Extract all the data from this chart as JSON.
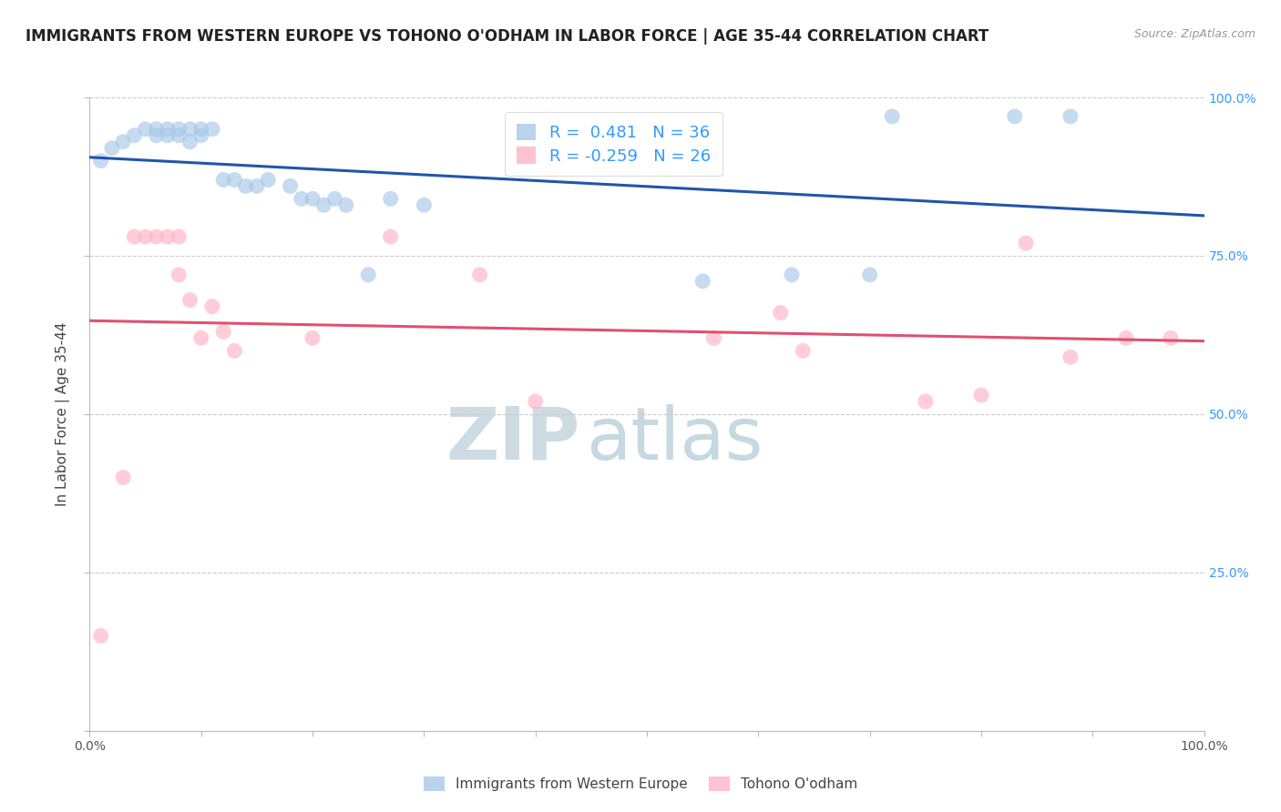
{
  "title": "IMMIGRANTS FROM WESTERN EUROPE VS TOHONO O'ODHAM IN LABOR FORCE | AGE 35-44 CORRELATION CHART",
  "source": "Source: ZipAtlas.com",
  "ylabel": "In Labor Force | Age 35-44",
  "xlim": [
    0.0,
    1.0
  ],
  "ylim": [
    0.0,
    1.0
  ],
  "blue_R": 0.481,
  "blue_N": 36,
  "pink_R": -0.259,
  "pink_N": 26,
  "blue_color": "#A8C8E8",
  "pink_color": "#FFB3C6",
  "blue_line_color": "#2255AA",
  "pink_line_color": "#E05070",
  "legend_color": "#3399FF",
  "watermark_zip_color": "#C8D8E8",
  "watermark_atlas_color": "#A8C4D8",
  "blue_points_x": [
    0.01,
    0.02,
    0.03,
    0.04,
    0.05,
    0.06,
    0.06,
    0.07,
    0.07,
    0.08,
    0.08,
    0.09,
    0.09,
    0.1,
    0.1,
    0.11,
    0.12,
    0.13,
    0.14,
    0.15,
    0.16,
    0.18,
    0.19,
    0.2,
    0.21,
    0.22,
    0.23,
    0.25,
    0.27,
    0.3,
    0.55,
    0.63,
    0.7,
    0.72,
    0.83,
    0.88
  ],
  "blue_points_y": [
    0.9,
    0.92,
    0.93,
    0.94,
    0.95,
    0.95,
    0.94,
    0.94,
    0.95,
    0.95,
    0.94,
    0.95,
    0.93,
    0.95,
    0.94,
    0.95,
    0.87,
    0.87,
    0.86,
    0.86,
    0.87,
    0.86,
    0.84,
    0.84,
    0.83,
    0.84,
    0.83,
    0.72,
    0.84,
    0.83,
    0.71,
    0.72,
    0.72,
    0.97,
    0.97,
    0.97
  ],
  "pink_points_x": [
    0.01,
    0.03,
    0.04,
    0.05,
    0.06,
    0.07,
    0.08,
    0.08,
    0.09,
    0.1,
    0.11,
    0.12,
    0.13,
    0.2,
    0.27,
    0.35,
    0.4,
    0.56,
    0.62,
    0.64,
    0.75,
    0.8,
    0.84,
    0.88,
    0.93,
    0.97
  ],
  "pink_points_y": [
    0.15,
    0.4,
    0.78,
    0.78,
    0.78,
    0.78,
    0.78,
    0.72,
    0.68,
    0.62,
    0.67,
    0.63,
    0.6,
    0.62,
    0.78,
    0.72,
    0.52,
    0.62,
    0.66,
    0.6,
    0.52,
    0.53,
    0.77,
    0.59,
    0.62,
    0.62
  ],
  "grid_color": "#CCCCCC",
  "background_color": "#FFFFFF",
  "title_fontsize": 12,
  "axis_label_fontsize": 11,
  "tick_fontsize": 10,
  "legend_fontsize": 13
}
